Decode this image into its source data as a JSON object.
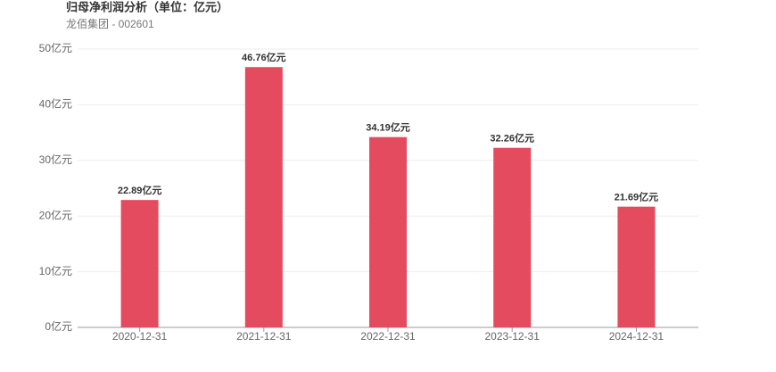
{
  "chart_data": {
    "type": "bar",
    "title": "归母净利润分析（单位：亿元）",
    "subtitle": "龙佰集团 - 002601",
    "categories": [
      "2020-12-31",
      "2021-12-31",
      "2022-12-31",
      "2023-12-31",
      "2024-12-31"
    ],
    "values": [
      22.89,
      46.76,
      34.19,
      32.26,
      21.69
    ],
    "value_labels": [
      "22.89亿元",
      "46.76亿元",
      "34.19亿元",
      "32.26亿元",
      "21.69亿元"
    ],
    "color": "#e54b5f",
    "ylim": [
      0,
      50
    ],
    "yticks": [
      {
        "value": 0,
        "label": "0亿元"
      },
      {
        "value": 10,
        "label": "10亿元"
      },
      {
        "value": 20,
        "label": "20亿元"
      },
      {
        "value": 30,
        "label": "30亿元"
      },
      {
        "value": 40,
        "label": "40亿元"
      },
      {
        "value": 50,
        "label": "50亿元"
      }
    ],
    "grid": true
  }
}
